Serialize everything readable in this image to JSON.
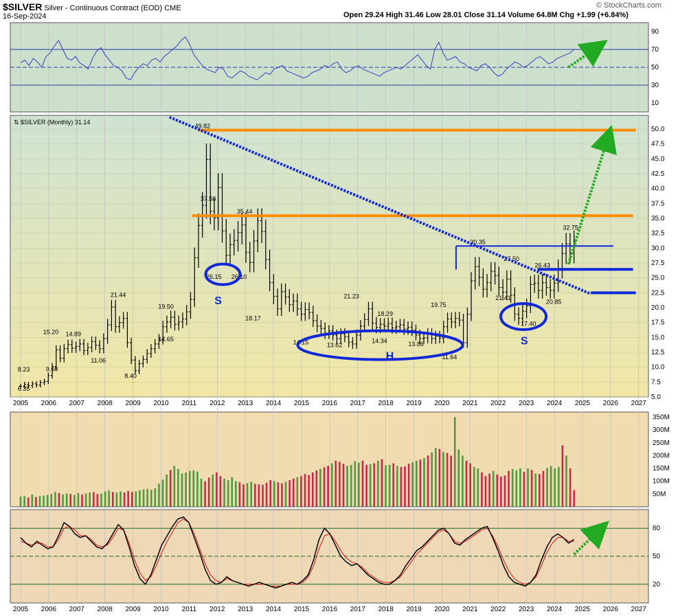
{
  "header": {
    "symbol": "$SILVER",
    "description": "Silver - Continuous Contract (EOD)",
    "exchange": "CME",
    "date": "16-Sep-2024",
    "ohlc": "Open 29.24  High 31.46  Low 28.01  Close 31.14  Volume 64.8M  Chg +1.99 (+6.84%)",
    "watermark": "© StockCharts.com",
    "series_label": "$SILVER (Monthly) 31.14"
  },
  "colors": {
    "rsi_bg": "#cce0cc",
    "price_bg_top": "#cfe3d2",
    "price_bg_bottom": "#f1e6a6",
    "volume_bg": "#f0dcb0",
    "osc_bg": "#efd8b5",
    "orange": "#ff8c00",
    "blue": "#1028d8",
    "green_arrow": "#22aa22",
    "vol_up": "#4f9a3f",
    "vol_down": "#c8284c"
  },
  "chart_data": [
    {
      "type": "line",
      "name": "rsi",
      "ylim": [
        0,
        100
      ],
      "ticks": [
        "90",
        "70",
        "50",
        "30",
        "10"
      ],
      "values": [
        55,
        58,
        52,
        60,
        56,
        50,
        62,
        66,
        74,
        80,
        70,
        60,
        58,
        62,
        55,
        52,
        48,
        60,
        68,
        72,
        64,
        58,
        52,
        50,
        46,
        38,
        36,
        44,
        50,
        54,
        52,
        58,
        60,
        56,
        62,
        66,
        70,
        74,
        80,
        84,
        76,
        64,
        58,
        52,
        48,
        46,
        44,
        50,
        48,
        40,
        38,
        42,
        46,
        44,
        40,
        38,
        36,
        40,
        44,
        42,
        48,
        50,
        52,
        46,
        44,
        42,
        40,
        38,
        40,
        44,
        46,
        48,
        52,
        50,
        54,
        56,
        48,
        44,
        46,
        50,
        52,
        48,
        46,
        44,
        42,
        40,
        44,
        46,
        48,
        50,
        48,
        52,
        56,
        60,
        64,
        58,
        52,
        48,
        70,
        78,
        66,
        58,
        60,
        62,
        56,
        54,
        50,
        48,
        46,
        52,
        54,
        50,
        44,
        40,
        42,
        48,
        52,
        56,
        54,
        50,
        52,
        56,
        60,
        62,
        58,
        54,
        56,
        60,
        62,
        64,
        66,
        70
      ]
    },
    {
      "type": "bar",
      "name": "price-ohlc",
      "title": "$SILVER (Monthly) 31.14",
      "ylim": [
        5,
        50
      ],
      "y_ticks": [
        "50.0",
        "47.5",
        "45.0",
        "42.5",
        "40.0",
        "37.5",
        "35.0",
        "32.5",
        "30.0",
        "27.5",
        "25.0",
        "22.5",
        "20.0",
        "17.5",
        "15.0",
        "12.5",
        "10.0",
        "7.5",
        "5.0"
      ],
      "x_ticks": [
        "2005",
        "2006",
        "2007",
        "2008",
        "2009",
        "2010",
        "2011",
        "2012",
        "2013",
        "2014",
        "2015",
        "2016",
        "2017",
        "2018",
        "2019",
        "2020",
        "2021",
        "2022",
        "2023",
        "2024",
        "2025",
        "2026",
        "2027"
      ],
      "close": [
        6.8,
        7.1,
        6.9,
        7.2,
        7.0,
        7.4,
        7.6,
        8.6,
        10.1,
        12.9,
        11.5,
        13.1,
        13.8,
        13.2,
        13.5,
        13.9,
        12.8,
        13.3,
        14.3,
        13.7,
        13.1,
        14.8,
        17.1,
        20.1,
        16.8,
        17.5,
        18.2,
        14.1,
        11.2,
        9.4,
        10.6,
        11.3,
        12.3,
        13.1,
        13.9,
        14.7,
        16.8,
        17.6,
        18.4,
        17.2,
        17.6,
        18.1,
        19.3,
        21.4,
        28.4,
        33.8,
        37.2,
        44.9,
        36.2,
        35.1,
        40.2,
        32.9,
        28.8,
        30.6,
        31.3,
        32.6,
        33.9,
        29.3,
        27.6,
        31.2,
        34.6,
        32.8,
        28.1,
        24.2,
        21.9,
        19.8,
        22.7,
        21.8,
        20.5,
        21.1,
        19.8,
        18.9,
        19.7,
        19.2,
        17.8,
        16.9,
        16.5,
        15.7,
        16.1,
        15.4,
        14.8,
        15.6,
        15.1,
        14.2,
        13.9,
        15.4,
        16.9,
        18.0,
        19.8,
        17.4,
        16.7,
        17.2,
        16.9,
        17.3,
        16.6,
        16.8,
        17.1,
        16.4,
        16.7,
        16.2,
        15.4,
        14.8,
        14.9,
        15.6,
        14.8,
        15.2,
        14.9,
        16.8,
        18.1,
        17.6,
        18.2,
        17.9,
        14.1,
        18.9,
        24.5,
        26.9,
        25.1,
        23.1,
        24.2,
        26.1,
        25.4,
        23.4,
        22.6,
        24.8,
        22.1,
        18.9,
        18.2,
        19.4,
        20.3,
        23.9,
        24.1,
        22.9,
        24.2,
        23.4,
        22.9,
        24.1,
        26.5,
        29.1,
        30.7,
        29.2,
        31.1
      ],
      "annotations": [
        "49.82",
        "37.58",
        "35.44",
        "30.35",
        "32.75",
        "27.50",
        "26.43",
        "26.15",
        "26.10",
        "21.41",
        "20.85",
        "17.40",
        "21.44",
        "21.23",
        "19.50",
        "19.75",
        "18.29",
        "18.17",
        "15.20",
        "14.89",
        "14.65",
        "14.15",
        "14.34",
        "13.86",
        "13.62",
        "11.64",
        "11.06",
        "9.60",
        "8.40",
        "8.23",
        "6.35"
      ],
      "pattern_labels": [
        "S",
        "H",
        "S"
      ],
      "resistance_levels": [
        49.82,
        35.44,
        30.35,
        26.43,
        22.5
      ]
    },
    {
      "type": "bar",
      "name": "volume",
      "y_ticks": [
        "350M",
        "300M",
        "250M",
        "200M",
        "150M",
        "100M",
        "50M"
      ],
      "values": [
        40,
        42,
        36,
        48,
        38,
        42,
        44,
        46,
        50,
        58,
        54,
        48,
        52,
        50,
        46,
        54,
        48,
        52,
        56,
        58,
        50,
        52,
        60,
        64,
        58,
        56,
        60,
        56,
        62,
        58,
        60,
        64,
        68,
        70,
        66,
        72,
        90,
        106,
        126,
        144,
        160,
        148,
        130,
        134,
        140,
        142,
        138,
        110,
        100,
        114,
        126,
        134,
        120,
        110,
        104,
        116,
        100,
        96,
        88,
        92,
        98,
        90,
        88,
        86,
        94,
        104,
        100,
        96,
        92,
        98,
        104,
        110,
        116,
        120,
        128,
        124,
        134,
        142,
        148,
        154,
        160,
        170,
        180,
        176,
        168,
        160,
        164,
        178,
        172,
        180,
        164,
        166,
        170,
        180,
        186,
        162,
        164,
        170,
        160,
        156,
        158,
        168,
        174,
        180,
        184,
        190,
        200,
        212,
        230,
        226,
        214,
        210,
        200,
        350,
        224,
        200,
        180,
        170,
        156,
        150,
        134,
        120,
        130,
        140,
        126,
        118,
        122,
        140,
        148,
        142,
        150,
        136,
        150,
        144,
        130,
        128,
        140,
        152,
        160,
        150,
        156,
        240,
        200,
        150,
        64.8
      ],
      "up": [
        1,
        1,
        0,
        1,
        0,
        1,
        1,
        1,
        1,
        1,
        0,
        1,
        1,
        0,
        1,
        1,
        0,
        1,
        1,
        0,
        0,
        1,
        1,
        1,
        0,
        1,
        1,
        0,
        0,
        0,
        1,
        1,
        1,
        1,
        1,
        1,
        1,
        1,
        1,
        0,
        1,
        1,
        1,
        1,
        1,
        1,
        1,
        1,
        0,
        0,
        1,
        0,
        0,
        1,
        1,
        1,
        1,
        0,
        0,
        1,
        1,
        0,
        0,
        0,
        0,
        0,
        1,
        0,
        0,
        1,
        0,
        0,
        1,
        0,
        0,
        0,
        0,
        0,
        1,
        0,
        0,
        1,
        0,
        0,
        0,
        1,
        1,
        1,
        1,
        0,
        0,
        1,
        0,
        1,
        0,
        1,
        1,
        0,
        1,
        0,
        0,
        0,
        1,
        1,
        0,
        1,
        0,
        1,
        1,
        0,
        1,
        0,
        0,
        1,
        1,
        1,
        0,
        0,
        1,
        1,
        0,
        0,
        0,
        1,
        0,
        0,
        0,
        0,
        1,
        1,
        1,
        0,
        1,
        0,
        1,
        0,
        0,
        1,
        1,
        1,
        1,
        0,
        1
      ]
    },
    {
      "type": "line",
      "name": "stochastic",
      "ticks": [
        "80",
        "50",
        "20"
      ],
      "k": [
        70,
        64,
        60,
        66,
        62,
        58,
        60,
        72,
        86,
        82,
        74,
        70,
        72,
        66,
        60,
        58,
        64,
        74,
        84,
        78,
        60,
        40,
        26,
        20,
        30,
        46,
        62,
        72,
        82,
        90,
        92,
        86,
        70,
        54,
        36,
        24,
        20,
        22,
        28,
        24,
        22,
        20,
        18,
        20,
        22,
        20,
        18,
        16,
        18,
        20,
        22,
        20,
        24,
        30,
        46,
        68,
        80,
        74,
        62,
        50,
        44,
        40,
        42,
        36,
        30,
        26,
        22,
        20,
        20,
        24,
        30,
        40,
        48,
        56,
        60,
        66,
        72,
        78,
        80,
        74,
        64,
        62,
        68,
        72,
        76,
        80,
        82,
        70,
        56,
        40,
        28,
        22,
        20,
        18,
        22,
        30,
        46,
        60,
        70,
        74,
        70,
        64,
        68
      ],
      "d": [
        66,
        64,
        62,
        64,
        64,
        60,
        60,
        68,
        80,
        82,
        78,
        72,
        72,
        68,
        62,
        60,
        62,
        70,
        80,
        78,
        64,
        46,
        32,
        24,
        28,
        40,
        54,
        66,
        76,
        86,
        90,
        86,
        74,
        58,
        42,
        30,
        24,
        22,
        26,
        24,
        22,
        20,
        20,
        20,
        20,
        20,
        18,
        18,
        18,
        20,
        20,
        20,
        22,
        28,
        40,
        58,
        72,
        74,
        66,
        56,
        48,
        44,
        42,
        38,
        32,
        28,
        24,
        22,
        22,
        24,
        28,
        36,
        44,
        52,
        58,
        64,
        70,
        76,
        78,
        74,
        66,
        64,
        66,
        70,
        74,
        78,
        80,
        72,
        60,
        46,
        34,
        26,
        22,
        20,
        22,
        28,
        40,
        54,
        64,
        70,
        70,
        66,
        66
      ]
    }
  ]
}
